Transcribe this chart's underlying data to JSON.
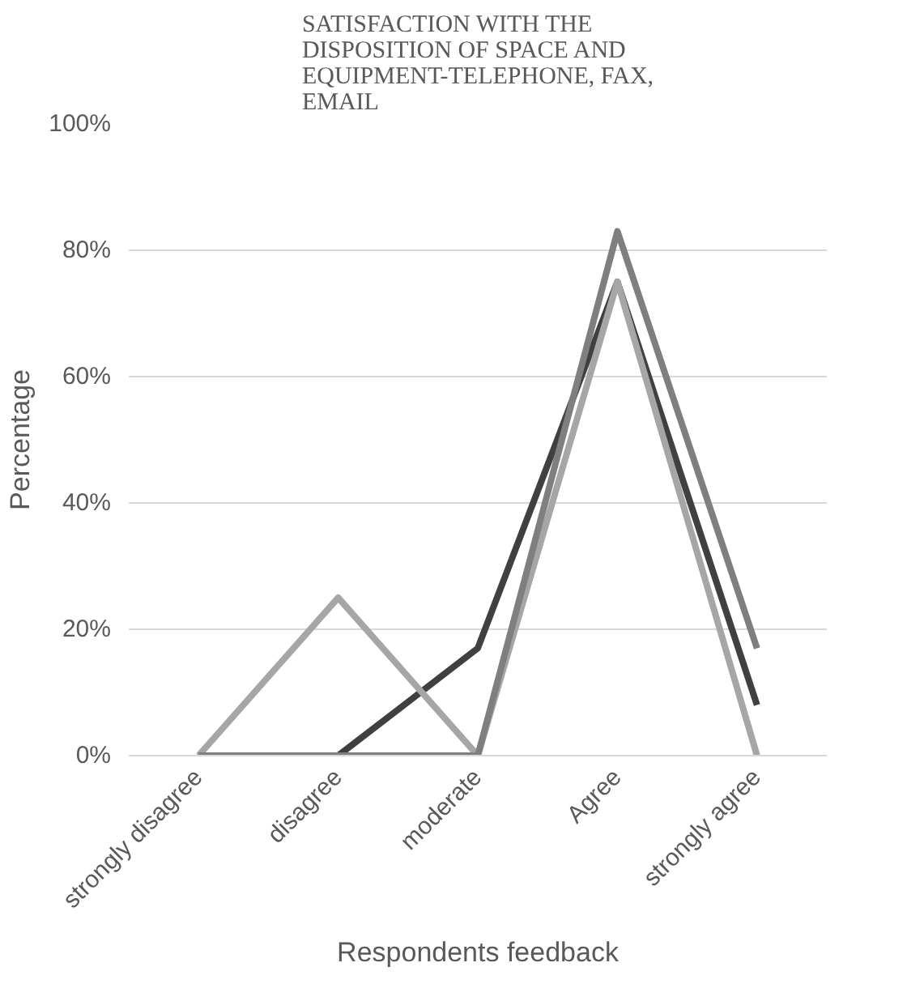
{
  "chart_data": {
    "type": "line",
    "title": "SATISFACTION WITH THE DISPOSITION OF SPACE AND EQUIPMENT-TELEPHONE, FAX, EMAIL",
    "xlabel": "Respondents feedback",
    "ylabel": "Percentage",
    "categories": [
      "strongly disagree",
      "disagree",
      "moderate",
      "Agree",
      "strongly agree"
    ],
    "series": [
      {
        "color": "#404040",
        "values": [
          0,
          0,
          17,
          75,
          8
        ]
      },
      {
        "color": "#a6a6a6",
        "values": [
          0,
          25,
          0,
          75,
          0
        ]
      },
      {
        "color": "#7f7f7f",
        "values": [
          0,
          0,
          0,
          83,
          17
        ]
      }
    ],
    "ylim": [
      0,
      100
    ],
    "yticks": [
      {
        "value": 0,
        "label": "0%"
      },
      {
        "value": 20,
        "label": "20%"
      },
      {
        "value": 40,
        "label": "40%"
      },
      {
        "value": 60,
        "label": "60%"
      },
      {
        "value": 80,
        "label": "80%"
      },
      {
        "value": 100,
        "label": "100%"
      }
    ],
    "grid": "y",
    "line_style": "solid"
  }
}
